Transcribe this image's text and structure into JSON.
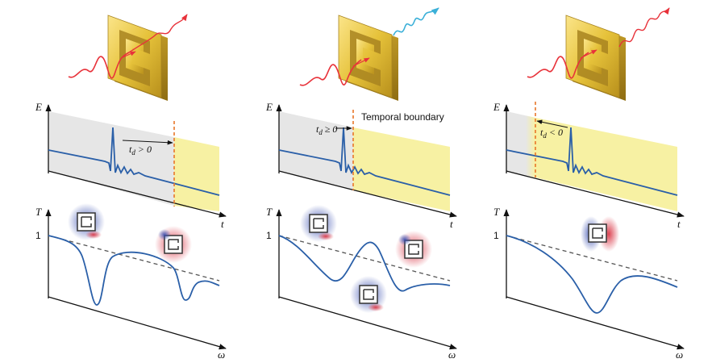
{
  "panels": [
    {
      "id": "left",
      "e_axis_label": "E",
      "t_axis_label": "t",
      "t_axis_label2": "T",
      "omega_label": "ω",
      "one_tick": "1",
      "td_annotation": {
        "base": "t",
        "sub": "d",
        "rel": " > 0"
      },
      "boundary_label": ""
    },
    {
      "id": "middle",
      "e_axis_label": "E",
      "t_axis_label": "t",
      "t_axis_label2": "T",
      "omega_label": "ω",
      "one_tick": "1",
      "td_annotation": {
        "base": "t",
        "sub": "d",
        "rel": " ≥ 0"
      },
      "boundary_label": "Temporal boundary"
    },
    {
      "id": "right",
      "e_axis_label": "E",
      "t_axis_label": "t",
      "t_axis_label2": "T",
      "omega_label": "ω",
      "one_tick": "1",
      "td_annotation": {
        "base": "t",
        "sub": "d",
        "rel": " < 0"
      },
      "boundary_label": ""
    }
  ],
  "colors": {
    "signal": "#2a5fa8",
    "boundary": "#e8762a",
    "gray_region": "#e6e6e6",
    "yellow_region": "#f7f1a3",
    "incident_wave": "#e8323a",
    "emitted_wave": "#3bb0d8",
    "resonator_gold": "#e6c23a",
    "dashed_line": "#555555"
  }
}
